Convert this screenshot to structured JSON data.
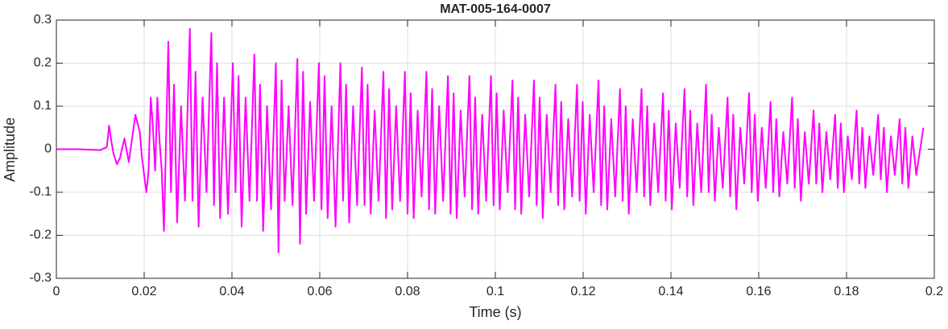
{
  "chart_data": {
    "type": "line",
    "title": "MAT-005-164-0007",
    "x_label": "Time (s)",
    "y_label": "Amplitude",
    "color": "#ff00ff",
    "grid": true,
    "xlim": [
      0,
      0.2
    ],
    "xticks": [
      0,
      0.02,
      0.04,
      0.06,
      0.08,
      0.1,
      0.12,
      0.14,
      0.16,
      0.18,
      0.2
    ],
    "ylim": [
      -0.3,
      0.3
    ],
    "yticks": [
      -0.3,
      -0.2,
      -0.1,
      0,
      0.1,
      0.2,
      0.3
    ],
    "x": [
      0,
      0.005,
      0.01,
      0.0115,
      0.012,
      0.0125,
      0.013,
      0.0138,
      0.0145,
      0.0155,
      0.0165,
      0.018,
      0.019,
      0.0195,
      0.0205,
      0.021,
      0.0215,
      0.022,
      0.0225,
      0.023,
      0.0235,
      0.024,
      0.0245,
      0.0255,
      0.0261,
      0.0268,
      0.0275,
      0.0284,
      0.0293,
      0.0304,
      0.031,
      0.0317,
      0.0324,
      0.0333,
      0.0342,
      0.0353,
      0.0359,
      0.0366,
      0.0373,
      0.0382,
      0.0391,
      0.0402,
      0.0408,
      0.0415,
      0.0422,
      0.0431,
      0.044,
      0.0451,
      0.0457,
      0.0464,
      0.0471,
      0.048,
      0.0489,
      0.05,
      0.0506,
      0.0513,
      0.052,
      0.0529,
      0.0538,
      0.0549,
      0.0555,
      0.0562,
      0.0569,
      0.0578,
      0.0587,
      0.0598,
      0.0604,
      0.0611,
      0.0618,
      0.0627,
      0.0636,
      0.0647,
      0.0653,
      0.066,
      0.0667,
      0.0676,
      0.0685,
      0.0696,
      0.0702,
      0.0709,
      0.0716,
      0.0725,
      0.0734,
      0.0745,
      0.0751,
      0.0758,
      0.0765,
      0.0774,
      0.0783,
      0.0794,
      0.08,
      0.0807,
      0.0814,
      0.0823,
      0.0832,
      0.0843,
      0.0849,
      0.0856,
      0.0863,
      0.0872,
      0.0881,
      0.0892,
      0.0898,
      0.0905,
      0.0912,
      0.0921,
      0.093,
      0.0941,
      0.0947,
      0.0954,
      0.0961,
      0.097,
      0.0979,
      0.099,
      0.0996,
      0.1003,
      0.101,
      0.1019,
      0.1028,
      0.1039,
      0.1045,
      0.1052,
      0.1059,
      0.1068,
      0.1077,
      0.1088,
      0.1094,
      0.1101,
      0.1108,
      0.1117,
      0.1126,
      0.1137,
      0.1143,
      0.115,
      0.1157,
      0.1166,
      0.1175,
      0.1186,
      0.1192,
      0.1199,
      0.1206,
      0.1215,
      0.1224,
      0.1235,
      0.1241,
      0.1248,
      0.1255,
      0.1264,
      0.1273,
      0.1284,
      0.129,
      0.1297,
      0.1304,
      0.1313,
      0.1322,
      0.1333,
      0.1339,
      0.1346,
      0.1353,
      0.1362,
      0.1371,
      0.1382,
      0.1388,
      0.1395,
      0.1402,
      0.1411,
      0.142,
      0.1431,
      0.1437,
      0.1444,
      0.1451,
      0.146,
      0.1469,
      0.148,
      0.1486,
      0.1493,
      0.15,
      0.1509,
      0.1518,
      0.1529,
      0.1535,
      0.1542,
      0.1549,
      0.1558,
      0.1567,
      0.1578,
      0.1584,
      0.1591,
      0.1598,
      0.1607,
      0.1616,
      0.1627,
      0.1633,
      0.164,
      0.1647,
      0.1656,
      0.1665,
      0.1676,
      0.1682,
      0.1689,
      0.1696,
      0.1705,
      0.1714,
      0.1725,
      0.1731,
      0.1738,
      0.1745,
      0.1754,
      0.1763,
      0.1774,
      0.178,
      0.1787,
      0.1794,
      0.1803,
      0.1812,
      0.1823,
      0.1829,
      0.1836,
      0.1843,
      0.1852,
      0.1861,
      0.1872,
      0.1878,
      0.1885,
      0.1892,
      0.1901,
      0.191,
      0.1921,
      0.1927,
      0.1934,
      0.1941,
      0.195,
      0.1959,
      0.1975
    ],
    "values": [
      0,
      0,
      -0.002,
      0.005,
      0.055,
      0.02,
      -0.01,
      -0.035,
      -0.02,
      0.025,
      -0.03,
      0.08,
      0.04,
      -0.02,
      -0.1,
      -0.05,
      0.12,
      0.05,
      -0.05,
      0.12,
      0.02,
      -0.05,
      -0.19,
      0.25,
      -0.1,
      0.15,
      -0.17,
      0.1,
      -0.12,
      0.28,
      -0.12,
      0.18,
      -0.18,
      0.12,
      -0.1,
      0.27,
      -0.13,
      0.2,
      -0.16,
      0.12,
      -0.15,
      0.2,
      -0.1,
      0.17,
      -0.18,
      0.12,
      -0.12,
      0.22,
      -0.12,
      0.15,
      -0.19,
      0.1,
      -0.14,
      0.2,
      -0.24,
      0.16,
      -0.12,
      0.1,
      -0.13,
      0.21,
      -0.22,
      0.18,
      -0.15,
      0.11,
      -0.12,
      0.2,
      -0.14,
      0.17,
      -0.16,
      0.1,
      -0.18,
      0.2,
      -0.12,
      0.15,
      -0.17,
      0.1,
      -0.13,
      0.19,
      -0.13,
      0.15,
      -0.15,
      0.09,
      -0.12,
      0.18,
      -0.16,
      0.14,
      -0.14,
      0.1,
      -0.12,
      0.18,
      -0.15,
      0.13,
      -0.16,
      0.09,
      -0.11,
      0.18,
      -0.14,
      0.14,
      -0.15,
      0.1,
      -0.12,
      0.17,
      -0.15,
      0.13,
      -0.16,
      0.09,
      -0.11,
      0.17,
      -0.14,
      0.12,
      -0.15,
      0.08,
      -0.12,
      0.17,
      -0.13,
      0.13,
      -0.14,
      0.09,
      -0.1,
      0.16,
      -0.14,
      0.12,
      -0.15,
      0.08,
      -0.11,
      0.16,
      -0.13,
      0.12,
      -0.16,
      0.08,
      -0.1,
      0.15,
      -0.13,
      0.11,
      -0.14,
      0.07,
      -0.11,
      0.15,
      -0.12,
      0.11,
      -0.15,
      0.08,
      -0.1,
      0.16,
      -0.13,
      0.1,
      -0.14,
      0.07,
      -0.11,
      0.14,
      -0.12,
      0.1,
      -0.15,
      0.07,
      -0.1,
      0.14,
      -0.11,
      0.1,
      -0.13,
      0.06,
      -0.1,
      0.13,
      -0.12,
      0.09,
      -0.14,
      0.06,
      -0.09,
      0.14,
      -0.11,
      0.09,
      -0.13,
      0.06,
      -0.1,
      0.15,
      -0.1,
      0.08,
      -0.12,
      0.05,
      -0.09,
      0.12,
      -0.11,
      0.08,
      -0.14,
      0.05,
      -0.08,
      0.13,
      -0.1,
      0.08,
      -0.12,
      0.05,
      -0.09,
      0.11,
      -0.1,
      0.07,
      -0.11,
      0.04,
      -0.08,
      0.12,
      -0.09,
      0.07,
      -0.12,
      0.04,
      -0.08,
      0.09,
      -0.08,
      0.06,
      -0.1,
      0.04,
      -0.07,
      0.08,
      -0.09,
      0.06,
      -0.1,
      0.03,
      -0.07,
      0.09,
      -0.08,
      0.05,
      -0.09,
      0.03,
      -0.06,
      0.08,
      -0.07,
      0.05,
      -0.1,
      0.03,
      -0.06,
      0.07,
      -0.08,
      0.05,
      -0.09,
      0.03,
      -0.06,
      0.05
    ]
  }
}
